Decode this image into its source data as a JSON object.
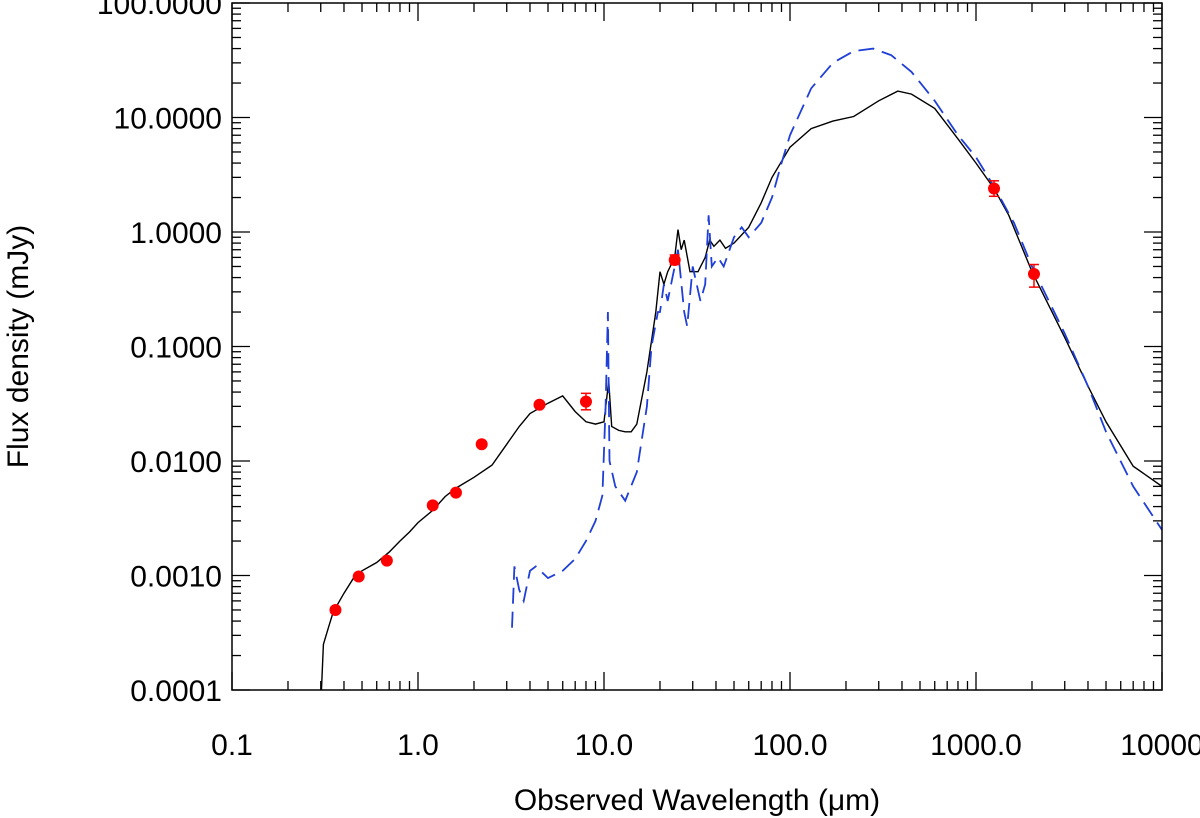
{
  "chart_data": {
    "type": "scatter",
    "xlabel": "Observed Wavelength (μm)",
    "ylabel": "Flux density (mJy)",
    "xscale": "log",
    "yscale": "log",
    "xlim": [
      0.1,
      10000
    ],
    "ylim": [
      0.0001,
      100
    ],
    "x_ticks": [
      {
        "value": 0.1,
        "label": "0.1"
      },
      {
        "value": 1,
        "label": "1.0"
      },
      {
        "value": 10,
        "label": "10.0"
      },
      {
        "value": 100,
        "label": "100.0"
      },
      {
        "value": 1000,
        "label": "1000.0"
      },
      {
        "value": 10000,
        "label": "10000"
      }
    ],
    "y_ticks": [
      {
        "value": 0.0001,
        "label": "0.0001"
      },
      {
        "value": 0.001,
        "label": "0.0010"
      },
      {
        "value": 0.01,
        "label": "0.0100"
      },
      {
        "value": 0.1,
        "label": "0.1000"
      },
      {
        "value": 1,
        "label": "1.0000"
      },
      {
        "value": 10,
        "label": "10.0000"
      },
      {
        "value": 100,
        "label": "100.0000"
      }
    ],
    "grid": false,
    "legend": "none",
    "series": [
      {
        "kind": "points",
        "color": "#ff0000",
        "marker": "circle",
        "points": [
          {
            "x": 0.36,
            "y": 0.0005
          },
          {
            "x": 0.48,
            "y": 0.00098
          },
          {
            "x": 0.68,
            "y": 0.00135
          },
          {
            "x": 1.2,
            "y": 0.0041
          },
          {
            "x": 1.6,
            "y": 0.0053
          },
          {
            "x": 2.2,
            "y": 0.014
          },
          {
            "x": 4.5,
            "y": 0.031
          },
          {
            "x": 8.0,
            "y": 0.033,
            "ylo": 0.028,
            "yhi": 0.039
          },
          {
            "x": 24,
            "y": 0.57,
            "ylo": 0.52,
            "yhi": 0.63
          },
          {
            "x": 1250,
            "y": 2.4,
            "ylo": 2.05,
            "yhi": 2.8
          },
          {
            "x": 2050,
            "y": 0.43,
            "ylo": 0.33,
            "yhi": 0.52
          }
        ]
      },
      {
        "kind": "line",
        "style": "solid",
        "color": "#000000",
        "points": [
          [
            0.3,
            7e-05
          ],
          [
            0.31,
            0.00025
          ],
          [
            0.33,
            0.00035
          ],
          [
            0.35,
            0.00048
          ],
          [
            0.4,
            0.0007
          ],
          [
            0.45,
            0.00095
          ],
          [
            0.5,
            0.0011
          ],
          [
            0.6,
            0.0013
          ],
          [
            0.7,
            0.0016
          ],
          [
            0.8,
            0.002
          ],
          [
            0.9,
            0.0024
          ],
          [
            1.0,
            0.0029
          ],
          [
            1.2,
            0.0037
          ],
          [
            1.4,
            0.0049
          ],
          [
            1.6,
            0.0058
          ],
          [
            2.0,
            0.0072
          ],
          [
            2.5,
            0.0092
          ],
          [
            3.0,
            0.014
          ],
          [
            3.5,
            0.02
          ],
          [
            4.0,
            0.026
          ],
          [
            5.0,
            0.032
          ],
          [
            6.0,
            0.037
          ],
          [
            7.0,
            0.027
          ],
          [
            8.0,
            0.022
          ],
          [
            9.0,
            0.021
          ],
          [
            10.0,
            0.022
          ],
          [
            10.6,
            0.05
          ],
          [
            11.0,
            0.02
          ],
          [
            12.0,
            0.0185
          ],
          [
            13.0,
            0.018
          ],
          [
            14.0,
            0.018
          ],
          [
            15.0,
            0.021
          ],
          [
            17.0,
            0.06
          ],
          [
            19.0,
            0.2
          ],
          [
            20.0,
            0.45
          ],
          [
            21.0,
            0.35
          ],
          [
            22.0,
            0.45
          ],
          [
            24.0,
            0.6
          ],
          [
            25.0,
            1.05
          ],
          [
            26.0,
            0.7
          ],
          [
            27.0,
            0.85
          ],
          [
            29.0,
            0.45
          ],
          [
            32.0,
            0.45
          ],
          [
            35.0,
            0.6
          ],
          [
            37.0,
            0.85
          ],
          [
            39.0,
            0.75
          ],
          [
            42.0,
            0.85
          ],
          [
            45.0,
            0.72
          ],
          [
            50.0,
            0.8
          ],
          [
            60.0,
            1.1
          ],
          [
            70.0,
            1.8
          ],
          [
            80.0,
            3.0
          ],
          [
            100.0,
            5.5
          ],
          [
            130.0,
            8.0
          ],
          [
            170.0,
            9.3
          ],
          [
            220.0,
            10.2
          ],
          [
            300.0,
            14.0
          ],
          [
            380.0,
            17.0
          ],
          [
            450.0,
            16.0
          ],
          [
            600.0,
            12.0
          ],
          [
            800.0,
            6.5
          ],
          [
            1000.0,
            4.0
          ],
          [
            1250.0,
            2.4
          ],
          [
            1500.0,
            1.4
          ],
          [
            2000.0,
            0.45
          ],
          [
            3000.0,
            0.12
          ],
          [
            4000.0,
            0.045
          ],
          [
            5000.0,
            0.022
          ],
          [
            7000.0,
            0.009
          ],
          [
            10000.0,
            0.006
          ]
        ]
      },
      {
        "kind": "line",
        "style": "dashed",
        "color": "#1f3fd8",
        "points": [
          [
            3.2,
            0.00035
          ],
          [
            3.3,
            0.0012
          ],
          [
            3.5,
            0.00075
          ],
          [
            3.7,
            0.0006
          ],
          [
            4.0,
            0.0011
          ],
          [
            4.3,
            0.0012
          ],
          [
            5.0,
            0.00095
          ],
          [
            6.0,
            0.0011
          ],
          [
            7.0,
            0.0014
          ],
          [
            8.0,
            0.002
          ],
          [
            9.0,
            0.003
          ],
          [
            9.8,
            0.005
          ],
          [
            10.2,
            0.03
          ],
          [
            10.5,
            0.2
          ],
          [
            10.7,
            0.01
          ],
          [
            11.5,
            0.006
          ],
          [
            13.0,
            0.0045
          ],
          [
            15.0,
            0.008
          ],
          [
            17.0,
            0.03
          ],
          [
            18.0,
            0.1
          ],
          [
            19.5,
            0.2
          ],
          [
            20.0,
            0.2
          ],
          [
            21.0,
            0.35
          ],
          [
            22.0,
            0.25
          ],
          [
            24.0,
            0.5
          ],
          [
            25.0,
            0.7
          ],
          [
            27.0,
            0.2
          ],
          [
            28.0,
            0.15
          ],
          [
            30.0,
            0.5
          ],
          [
            33.0,
            0.25
          ],
          [
            35.0,
            0.35
          ],
          [
            36.5,
            1.4
          ],
          [
            38.0,
            0.5
          ],
          [
            41.0,
            0.6
          ],
          [
            44.0,
            0.5
          ],
          [
            50.0,
            0.9
          ],
          [
            55.0,
            1.1
          ],
          [
            60.0,
            0.9
          ],
          [
            70.0,
            1.2
          ],
          [
            80.0,
            2.0
          ],
          [
            90.0,
            4.0
          ],
          [
            100.0,
            7.0
          ],
          [
            130.0,
            18.0
          ],
          [
            170.0,
            30.0
          ],
          [
            220.0,
            38.0
          ],
          [
            280.0,
            40.0
          ],
          [
            350.0,
            35.0
          ],
          [
            450.0,
            25.0
          ],
          [
            600.0,
            14.0
          ],
          [
            800.0,
            7.0
          ],
          [
            1000.0,
            4.5
          ],
          [
            1250.0,
            2.5
          ],
          [
            1600.0,
            1.2
          ],
          [
            2000.0,
            0.5
          ],
          [
            3000.0,
            0.13
          ],
          [
            4000.0,
            0.045
          ],
          [
            5000.0,
            0.018
          ],
          [
            7000.0,
            0.006
          ],
          [
            10000.0,
            0.0025
          ]
        ]
      }
    ]
  }
}
